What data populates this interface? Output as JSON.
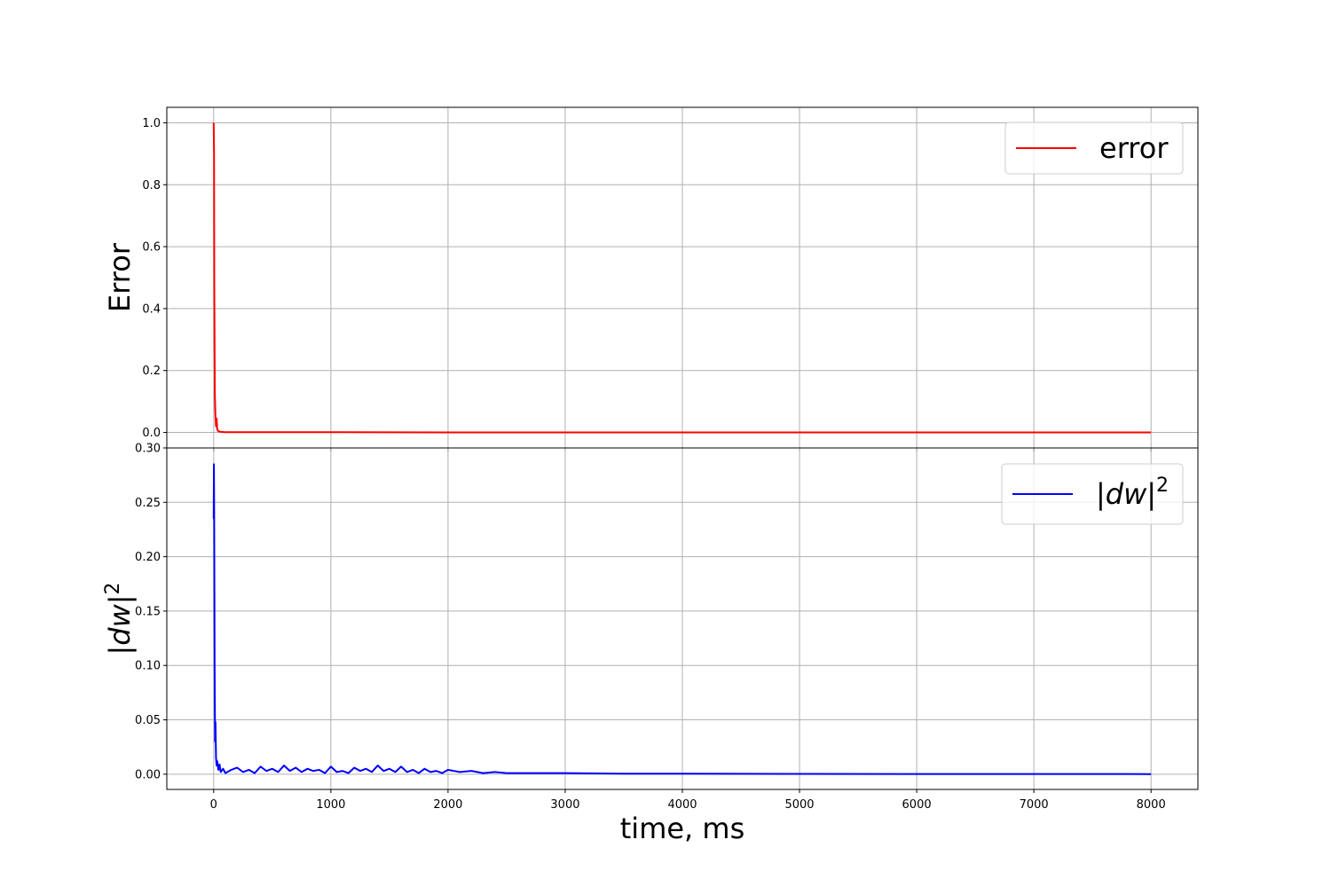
{
  "chart_data": [
    {
      "type": "line",
      "xlabel": "",
      "ylabel": "Error",
      "xlim": [
        -400,
        8400
      ],
      "ylim": [
        -0.05,
        1.05
      ],
      "xticks": [
        0,
        1000,
        2000,
        3000,
        4000,
        5000,
        6000,
        7000,
        8000
      ],
      "yticks": [
        "0.0",
        "0.2",
        "0.4",
        "0.6",
        "0.8",
        "1.0"
      ],
      "grid": true,
      "legend_position": "top-right",
      "series": [
        {
          "name": "error",
          "color": "#ff0000",
          "x": [
            0,
            3,
            5,
            8,
            10,
            15,
            20,
            25,
            30,
            40,
            60,
            100,
            500,
            1000,
            2000,
            4000,
            6000,
            8000
          ],
          "y": [
            1.0,
            0.9,
            0.47,
            0.25,
            0.12,
            0.05,
            0.02,
            0.045,
            0.01,
            0.004,
            0.002,
            0.001,
            0.001,
            0.001,
            0.0,
            0.0,
            0.0,
            0.0
          ]
        }
      ]
    },
    {
      "type": "line",
      "xlabel": "time, ms",
      "ylabel": "|dw|",
      "ylabel_superscript": "2",
      "xlim": [
        -400,
        8400
      ],
      "ylim": [
        -0.014,
        0.3
      ],
      "xticks": [
        0,
        1000,
        2000,
        3000,
        4000,
        5000,
        6000,
        7000,
        8000
      ],
      "yticks": [
        "0.00",
        "0.05",
        "0.10",
        "0.15",
        "0.20",
        "0.25",
        "0.30"
      ],
      "grid": true,
      "legend_position": "top-right",
      "series": [
        {
          "name": "|dw|",
          "name_superscript": "2",
          "color": "#0000ff",
          "x": [
            0,
            2,
            4,
            6,
            8,
            10,
            12,
            15,
            20,
            25,
            30,
            40,
            50,
            60,
            80,
            100,
            150,
            200,
            250,
            300,
            350,
            400,
            450,
            500,
            550,
            600,
            650,
            700,
            750,
            800,
            850,
            900,
            950,
            1000,
            1050,
            1100,
            1150,
            1200,
            1250,
            1300,
            1350,
            1400,
            1450,
            1500,
            1550,
            1600,
            1650,
            1700,
            1750,
            1800,
            1850,
            1900,
            1950,
            2000,
            2100,
            2200,
            2300,
            2400,
            2500,
            2600,
            2800,
            3000,
            3500,
            4000,
            5000,
            6000,
            7000,
            8000
          ],
          "y": [
            0.235,
            0.285,
            0.24,
            0.17,
            0.1,
            0.06,
            0.03,
            0.048,
            0.015,
            0.008,
            0.012,
            0.004,
            0.009,
            0.002,
            0.005,
            0.001,
            0.004,
            0.006,
            0.002,
            0.004,
            0.001,
            0.007,
            0.003,
            0.005,
            0.002,
            0.008,
            0.003,
            0.006,
            0.002,
            0.005,
            0.003,
            0.004,
            0.001,
            0.007,
            0.002,
            0.003,
            0.001,
            0.006,
            0.003,
            0.005,
            0.002,
            0.008,
            0.003,
            0.005,
            0.002,
            0.007,
            0.002,
            0.004,
            0.001,
            0.005,
            0.002,
            0.003,
            0.001,
            0.004,
            0.002,
            0.003,
            0.001,
            0.002,
            0.001,
            0.001,
            0.001,
            0.001,
            0.0005,
            0.0005,
            0.0003,
            0.0002,
            0.0002,
            0.0001
          ]
        }
      ]
    }
  ]
}
